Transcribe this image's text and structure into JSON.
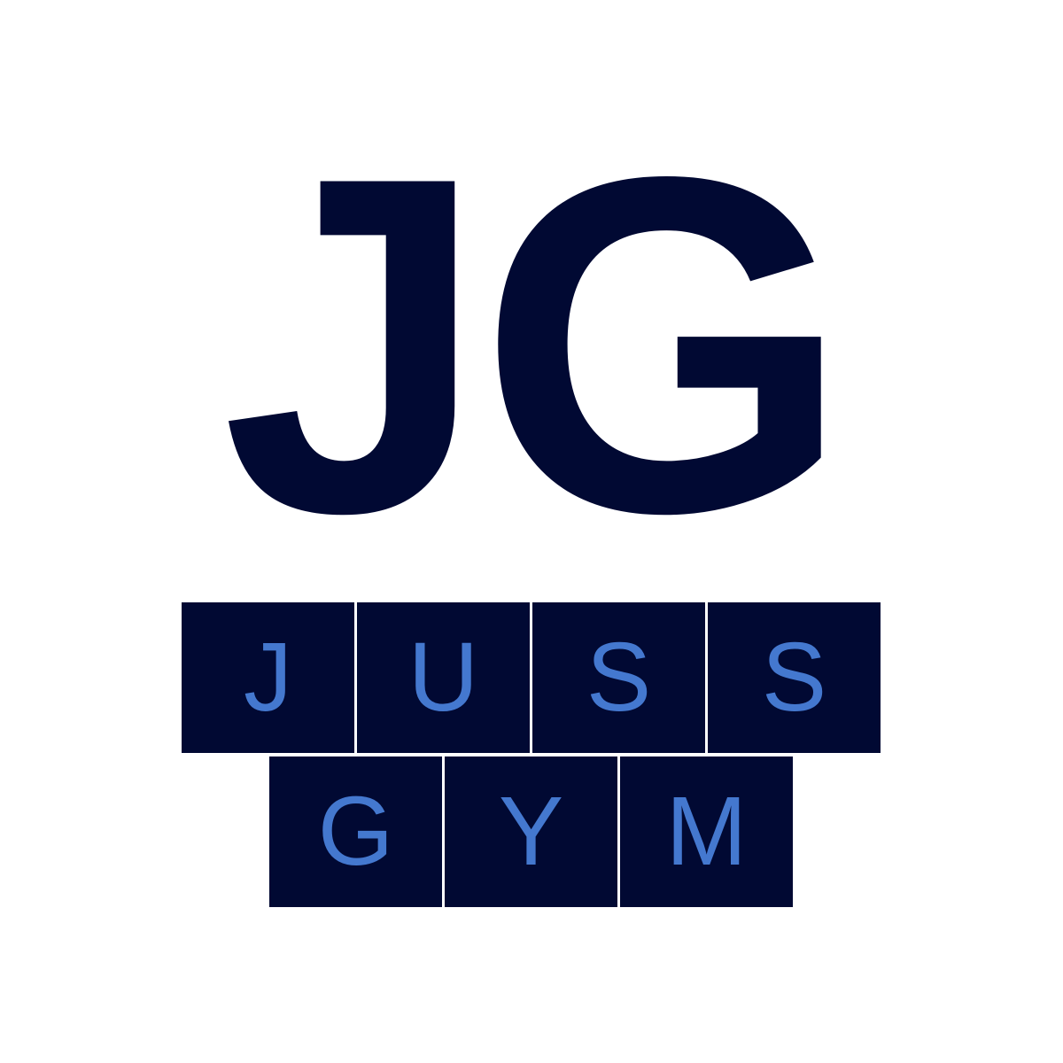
{
  "logo": {
    "monogram": "JG",
    "wordmark_line1": [
      "J",
      "U",
      "S",
      "S"
    ],
    "wordmark_line2": [
      "G",
      "Y",
      "M"
    ]
  },
  "colors": {
    "background": "#ffffff",
    "navy": "#010933",
    "accent_blue": "#4478cf"
  }
}
